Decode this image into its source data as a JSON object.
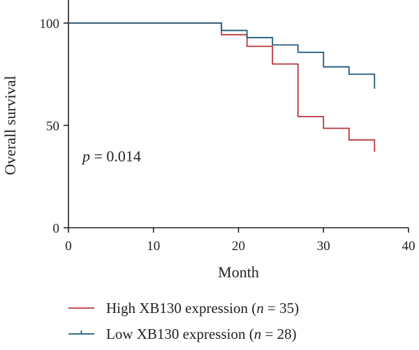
{
  "chart_data": {
    "type": "line",
    "title": "",
    "xlabel": "Month",
    "ylabel": "Overall survival",
    "xlim": [
      0,
      40
    ],
    "ylim": [
      0,
      100
    ],
    "x_ticks": [
      0,
      10,
      20,
      30,
      40
    ],
    "y_ticks": [
      0,
      50,
      100
    ],
    "x_tick_labels": [
      "0",
      "10",
      "20",
      "30",
      "40"
    ],
    "y_tick_labels": [
      "0",
      "50",
      "100"
    ],
    "grid": false,
    "legend_position": "bottom",
    "annotation": {
      "italic": "p",
      "rest": " = 0.014"
    },
    "series": [
      {
        "name": "High XB130 expression",
        "legend_n": "n",
        "legend_n_value": " = 35)",
        "legend_prefix": "High XB130 expression (",
        "color": "#b8343b",
        "step_points": [
          [
            0,
            100
          ],
          [
            18,
            100
          ],
          [
            18,
            94.3
          ],
          [
            21,
            94.3
          ],
          [
            21,
            88.6
          ],
          [
            24,
            88.6
          ],
          [
            24,
            80
          ],
          [
            27,
            80
          ],
          [
            27,
            54.3
          ],
          [
            30,
            54.3
          ],
          [
            30,
            48.6
          ],
          [
            33,
            48.6
          ],
          [
            33,
            42.9
          ],
          [
            36,
            42.9
          ],
          [
            36,
            37.1
          ]
        ]
      },
      {
        "name": "Low XB130 expression",
        "legend_n": "n",
        "legend_n_value": " = 28)",
        "legend_prefix": "Low XB130 expression (",
        "color": "#1f5a7a",
        "step_points": [
          [
            0,
            100
          ],
          [
            18,
            100
          ],
          [
            18,
            96.4
          ],
          [
            21,
            96.4
          ],
          [
            21,
            92.9
          ],
          [
            24,
            92.9
          ],
          [
            24,
            89.3
          ],
          [
            27,
            89.3
          ],
          [
            27,
            85.7
          ],
          [
            30,
            85.7
          ],
          [
            30,
            78.6
          ],
          [
            33,
            78.6
          ],
          [
            33,
            75
          ],
          [
            36,
            75
          ],
          [
            36,
            67.9
          ]
        ]
      }
    ]
  }
}
